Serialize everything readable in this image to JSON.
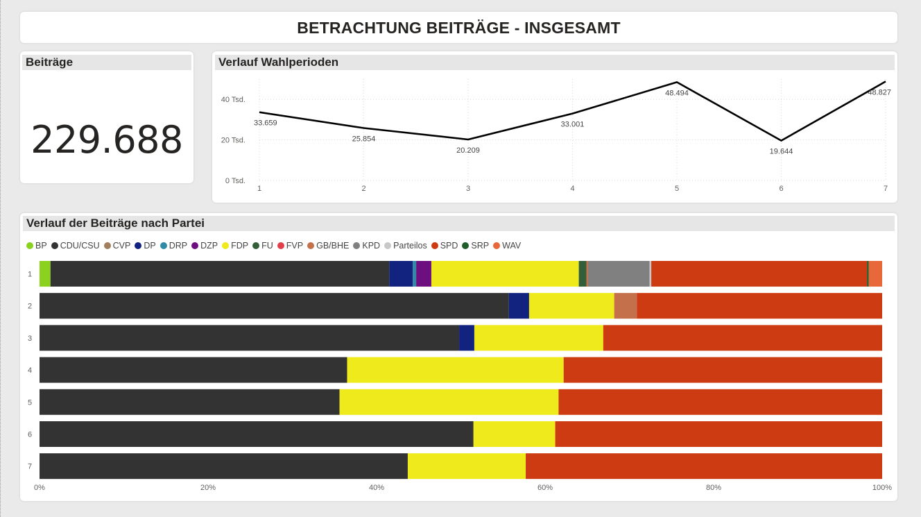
{
  "page_title": "BETRACHTUNG BEITRÄGE - INSGESAMT",
  "kpi": {
    "title": "Beiträge",
    "value": "229.688"
  },
  "line_chart": {
    "title": "Verlauf Wahlperioden"
  },
  "bar_chart": {
    "title": "Verlauf der Beiträge nach Partei"
  },
  "chart_data": [
    {
      "type": "line",
      "title": "Verlauf Wahlperioden",
      "x": [
        1,
        2,
        3,
        4,
        5,
        6,
        7
      ],
      "series": [
        {
          "values": [
            33659,
            25854,
            20209,
            33001,
            48494,
            19644,
            48827
          ],
          "color": "#000000"
        }
      ],
      "data_labels": [
        "33.659",
        "25.854",
        "20.209",
        "33.001",
        "48.494",
        "19.644",
        "48.827"
      ],
      "y_ticks": [
        0,
        20000,
        40000
      ],
      "y_tick_labels": [
        "0 Tsd.",
        "20 Tsd.",
        "40 Tsd."
      ],
      "x_tick_labels": [
        "1",
        "2",
        "3",
        "4",
        "5",
        "6",
        "7"
      ],
      "ylim": [
        0,
        50000
      ],
      "grid": true
    },
    {
      "type": "bar",
      "orientation": "horizontal",
      "stacked": "100%",
      "title": "Verlauf der Beiträge nach Partei",
      "categories": [
        "1",
        "2",
        "3",
        "4",
        "5",
        "6",
        "7"
      ],
      "legend_position": "top-left",
      "x_ticks": [
        0,
        20,
        40,
        60,
        80,
        100
      ],
      "x_tick_labels": [
        "0%",
        "20%",
        "40%",
        "60%",
        "80%",
        "100%"
      ],
      "series": [
        {
          "name": "BP",
          "color": "#8ad21e",
          "values": [
            1.3,
            0,
            0,
            0,
            0,
            0,
            0
          ]
        },
        {
          "name": "CDU/CSU",
          "color": "#333333",
          "values": [
            40.2,
            55.7,
            49.8,
            36.5,
            35.6,
            51.5,
            43.7
          ]
        },
        {
          "name": "CVP",
          "color": "#a07f5d",
          "values": [
            0,
            0,
            0,
            0,
            0,
            0,
            0
          ]
        },
        {
          "name": "DP",
          "color": "#12227f",
          "values": [
            2.8,
            2.4,
            1.8,
            0,
            0,
            0,
            0
          ]
        },
        {
          "name": "DRP",
          "color": "#2f8aa6",
          "values": [
            0.4,
            0,
            0,
            0,
            0,
            0,
            0
          ]
        },
        {
          "name": "DZP",
          "color": "#6e0f80",
          "values": [
            1.8,
            0,
            0,
            0,
            0,
            0,
            0
          ]
        },
        {
          "name": "FDP",
          "color": "#eeea1c",
          "values": [
            17.5,
            10.1,
            15.3,
            25.7,
            26.0,
            9.7,
            14.0
          ]
        },
        {
          "name": "FU",
          "color": "#335e3a",
          "values": [
            0.9,
            0,
            0,
            0,
            0,
            0,
            0
          ]
        },
        {
          "name": "FVP",
          "color": "#e1404b",
          "values": [
            0,
            0,
            0,
            0,
            0,
            0,
            0
          ]
        },
        {
          "name": "GB/BHE",
          "color": "#c4704b",
          "values": [
            0.2,
            2.7,
            0,
            0,
            0,
            0,
            0
          ]
        },
        {
          "name": "KPD",
          "color": "#808080",
          "values": [
            7.3,
            0,
            0,
            0,
            0,
            0,
            0
          ]
        },
        {
          "name": "Parteilos",
          "color": "#c8c8c8",
          "values": [
            0.2,
            0,
            0,
            0,
            0,
            0,
            0
          ]
        },
        {
          "name": "SPD",
          "color": "#cc3b12",
          "values": [
            25.6,
            29.1,
            33.1,
            37.8,
            38.4,
            38.8,
            42.3
          ]
        },
        {
          "name": "SRP",
          "color": "#1d5e2a",
          "values": [
            0.2,
            0,
            0,
            0,
            0,
            0,
            0
          ]
        },
        {
          "name": "WAV",
          "color": "#e8683a",
          "values": [
            1.6,
            0,
            0,
            0,
            0,
            0,
            0
          ]
        }
      ]
    }
  ]
}
